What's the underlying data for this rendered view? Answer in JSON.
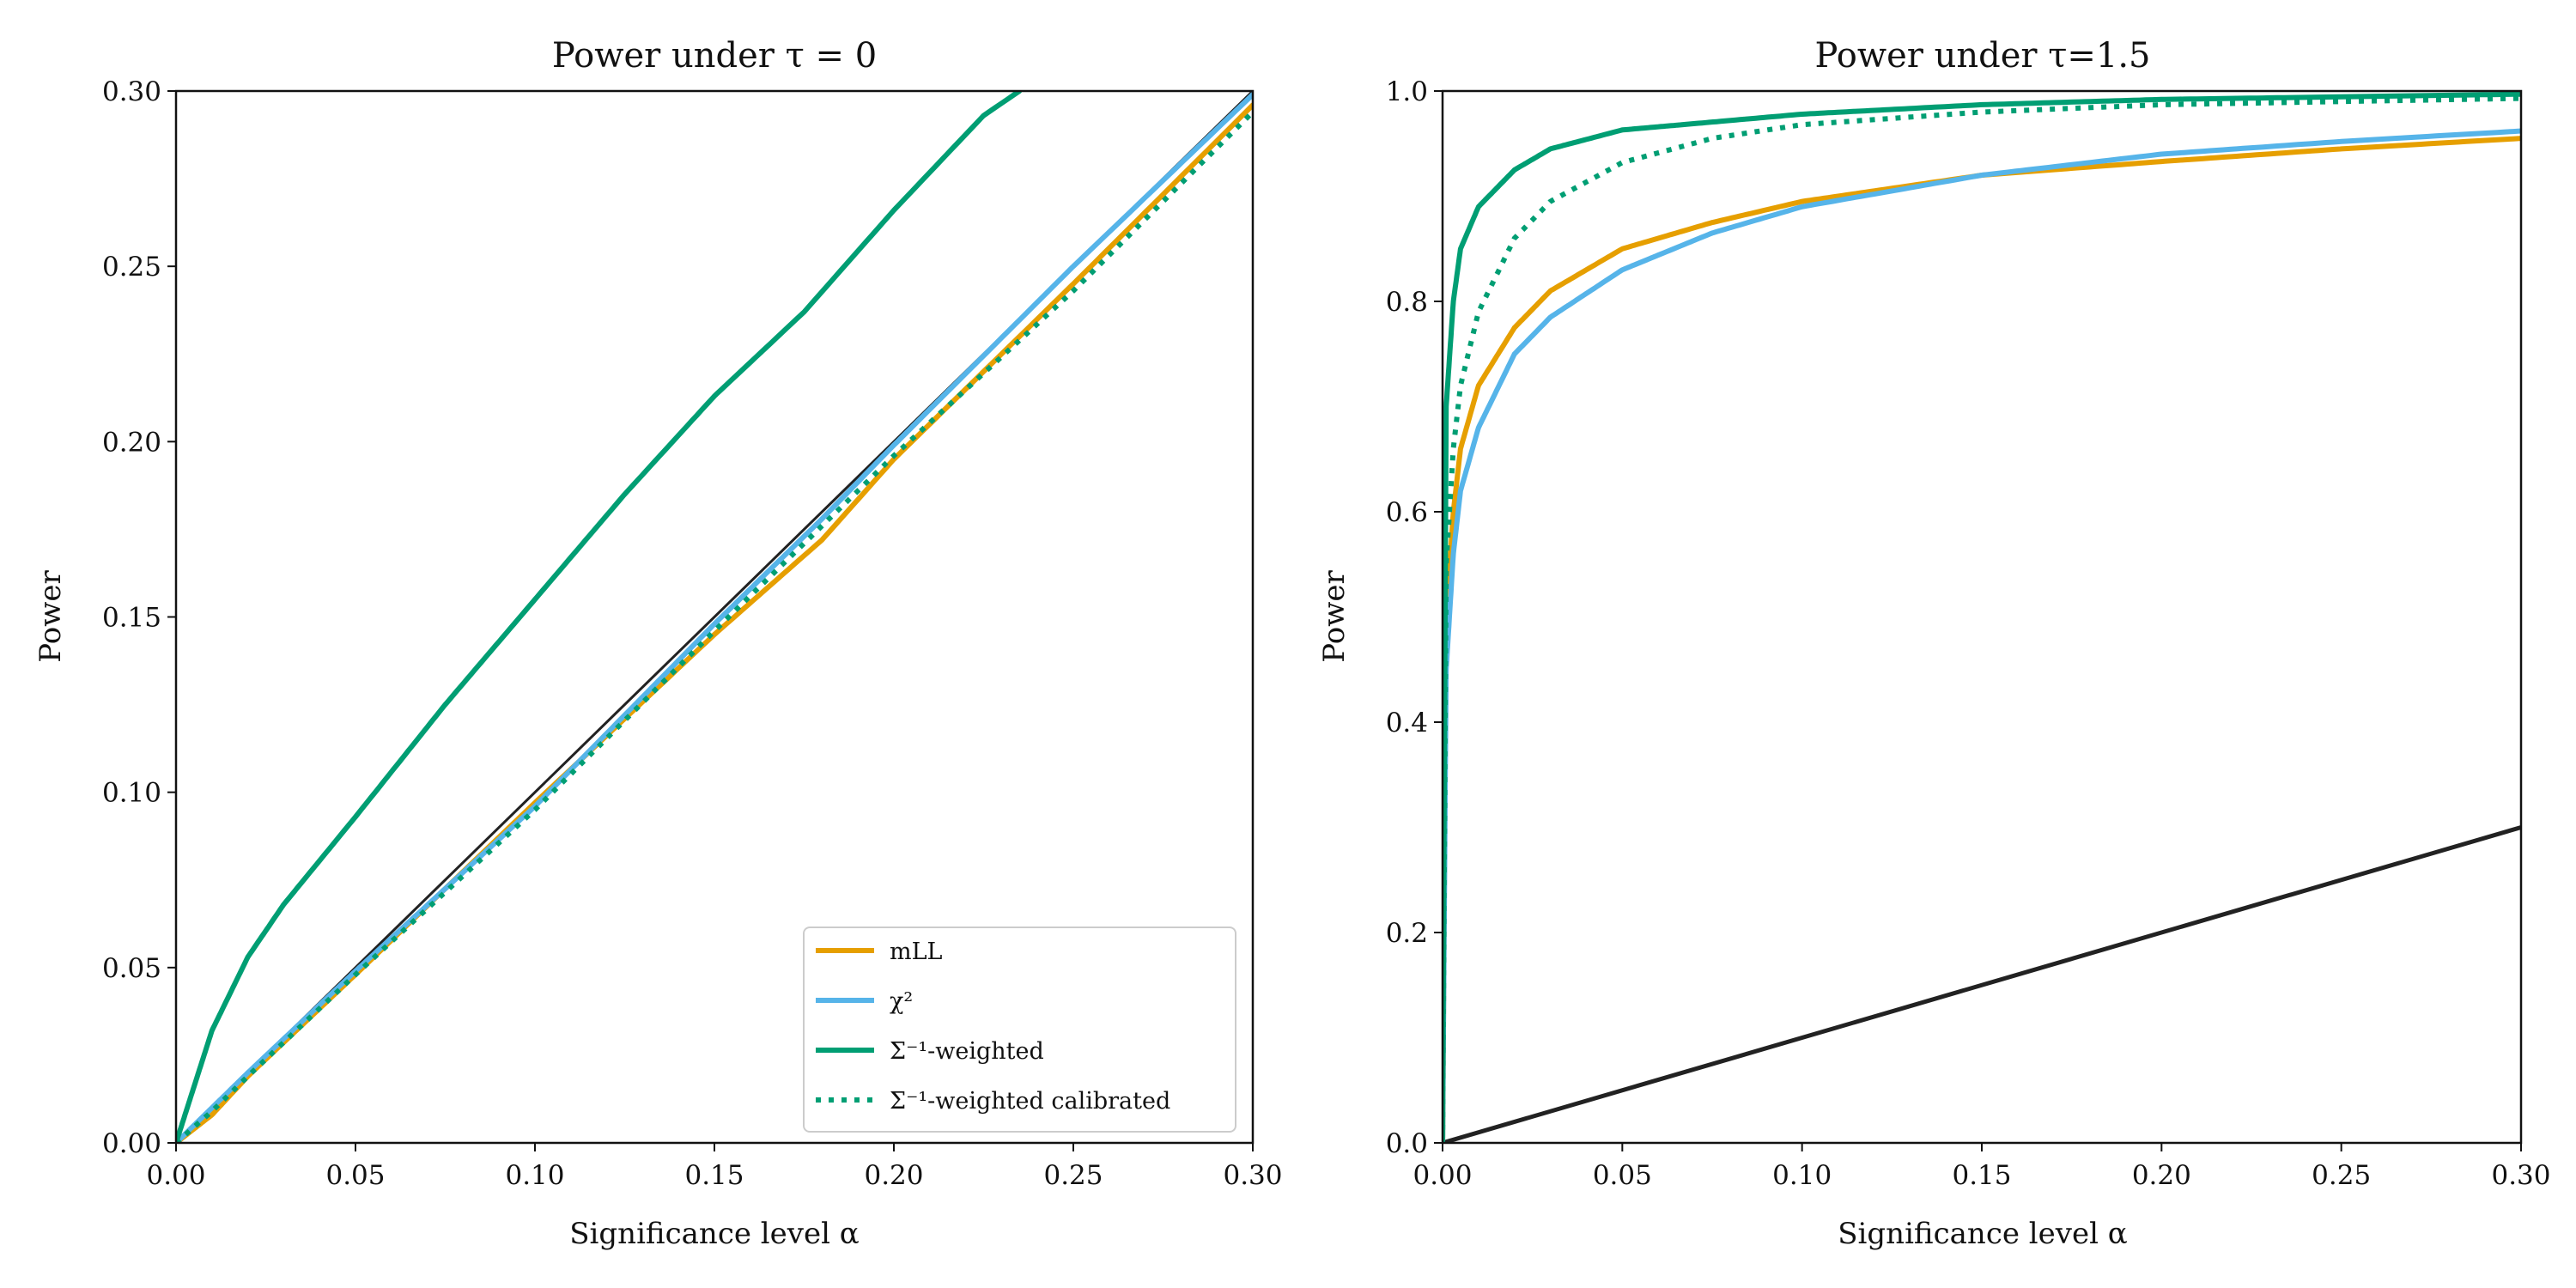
{
  "chart_data": [
    {
      "type": "line",
      "title": "Power under τ = 0",
      "xlabel": "Significance level α",
      "ylabel": "Power",
      "xlim": [
        0.0,
        0.3
      ],
      "ylim": [
        0.0,
        0.3
      ],
      "x_ticks": [
        "0.00",
        "0.05",
        "0.10",
        "0.15",
        "0.20",
        "0.25",
        "0.30"
      ],
      "y_ticks": [
        "0.00",
        "0.05",
        "0.10",
        "0.15",
        "0.20",
        "0.25",
        "0.30"
      ],
      "legend": {
        "placement": "lower-right",
        "entries": [
          "mLL",
          "χ²",
          "Σ⁻¹-weighted",
          "Σ⁻¹-weighted calibrated"
        ]
      },
      "reference_line": {
        "x": [
          0.0,
          0.3
        ],
        "y": [
          0.0,
          0.3
        ],
        "color": "#222222"
      },
      "series": [
        {
          "name": "mLL",
          "color": "#E69F00",
          "style": "solid",
          "x": [
            0.0,
            0.01,
            0.02,
            0.05,
            0.1,
            0.15,
            0.18,
            0.2,
            0.25,
            0.3
          ],
          "y": [
            0.0,
            0.008,
            0.019,
            0.048,
            0.097,
            0.145,
            0.172,
            0.195,
            0.245,
            0.296
          ]
        },
        {
          "name": "χ²",
          "color": "#56B4E9",
          "style": "solid",
          "x": [
            0.0,
            0.01,
            0.02,
            0.05,
            0.1,
            0.15,
            0.18,
            0.2,
            0.25,
            0.3
          ],
          "y": [
            0.0,
            0.01,
            0.02,
            0.049,
            0.096,
            0.148,
            0.178,
            0.199,
            0.25,
            0.299
          ]
        },
        {
          "name": "Σ⁻¹-weighted",
          "color": "#009E73",
          "style": "solid",
          "x": [
            0.0,
            0.01,
            0.02,
            0.03,
            0.05,
            0.075,
            0.1,
            0.125,
            0.15,
            0.175,
            0.2,
            0.225,
            0.235
          ],
          "y": [
            0.0,
            0.032,
            0.053,
            0.068,
            0.093,
            0.125,
            0.155,
            0.185,
            0.213,
            0.237,
            0.266,
            0.293,
            0.3
          ]
        },
        {
          "name": "Σ⁻¹-weighted calibrated",
          "color": "#009E73",
          "style": "dotted",
          "x": [
            0.0,
            0.01,
            0.02,
            0.05,
            0.1,
            0.15,
            0.2,
            0.25,
            0.3
          ],
          "y": [
            0.0,
            0.009,
            0.019,
            0.048,
            0.095,
            0.146,
            0.196,
            0.243,
            0.294
          ]
        }
      ]
    },
    {
      "type": "line",
      "title": "Power under τ=1.5",
      "xlabel": "Significance level α",
      "ylabel": "Power",
      "xlim": [
        0.0,
        0.3
      ],
      "ylim": [
        0.0,
        1.0
      ],
      "x_ticks": [
        "0.00",
        "0.05",
        "0.10",
        "0.15",
        "0.20",
        "0.25",
        "0.30"
      ],
      "y_ticks": [
        "0.0",
        "0.2",
        "0.4",
        "0.6",
        "0.8",
        "1.0"
      ],
      "reference_line": {
        "x": [
          0.0,
          0.3
        ],
        "y": [
          0.0,
          0.3
        ],
        "color": "#222222"
      },
      "series": [
        {
          "name": "mLL",
          "color": "#E69F00",
          "style": "solid",
          "x": [
            0.0,
            0.001,
            0.003,
            0.005,
            0.01,
            0.02,
            0.03,
            0.05,
            0.075,
            0.1,
            0.15,
            0.2,
            0.25,
            0.3
          ],
          "y": [
            0.0,
            0.5,
            0.6,
            0.66,
            0.72,
            0.775,
            0.81,
            0.85,
            0.875,
            0.895,
            0.92,
            0.933,
            0.945,
            0.955
          ]
        },
        {
          "name": "χ²",
          "color": "#56B4E9",
          "style": "solid",
          "x": [
            0.0,
            0.001,
            0.003,
            0.005,
            0.01,
            0.02,
            0.03,
            0.05,
            0.075,
            0.1,
            0.15,
            0.2,
            0.25,
            0.3
          ],
          "y": [
            0.0,
            0.45,
            0.56,
            0.62,
            0.68,
            0.75,
            0.785,
            0.83,
            0.865,
            0.89,
            0.92,
            0.94,
            0.952,
            0.962
          ]
        },
        {
          "name": "Σ⁻¹-weighted",
          "color": "#009E73",
          "style": "solid",
          "x": [
            0.0,
            0.001,
            0.003,
            0.005,
            0.01,
            0.02,
            0.03,
            0.05,
            0.1,
            0.15,
            0.2,
            0.3
          ],
          "y": [
            0.0,
            0.7,
            0.8,
            0.85,
            0.89,
            0.925,
            0.945,
            0.963,
            0.978,
            0.987,
            0.992,
            0.997
          ]
        },
        {
          "name": "Σ⁻¹-weighted calibrated",
          "color": "#009E73",
          "style": "dotted",
          "x": [
            0.0,
            0.001,
            0.003,
            0.005,
            0.01,
            0.02,
            0.03,
            0.05,
            0.075,
            0.1,
            0.15,
            0.2,
            0.3
          ],
          "y": [
            0.0,
            0.55,
            0.66,
            0.72,
            0.79,
            0.86,
            0.895,
            0.932,
            0.955,
            0.968,
            0.98,
            0.987,
            0.993
          ]
        }
      ]
    }
  ]
}
